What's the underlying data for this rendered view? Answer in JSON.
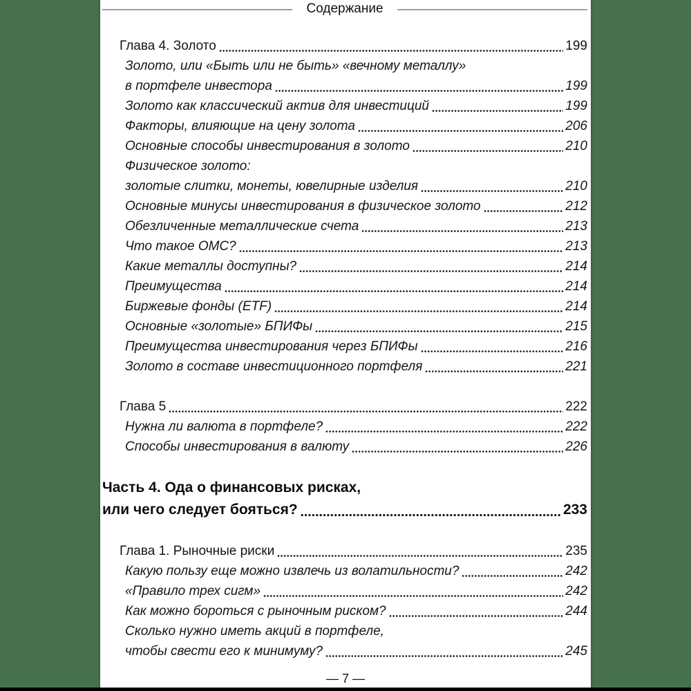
{
  "colors": {
    "sidebar-green": "#47714e",
    "page-bg": "#ffffff",
    "text-color": "#151515",
    "header-line": "#9e9e9e",
    "bottom-bar": "#000000"
  },
  "header": {
    "title": "Содержание"
  },
  "footer": {
    "page_label": "— 7 —"
  },
  "toc": {
    "entries": [
      {
        "style": "chapter",
        "text": "Глава 4. Золото ",
        "page": "199"
      },
      {
        "style": "sub",
        "text": "Золото, или «Быть или не быть» «вечному металлу»",
        "page": null
      },
      {
        "style": "sub",
        "text": "в портфеле инвестора",
        "page": "199"
      },
      {
        "style": "sub",
        "text": "Золото как классический актив для инвестиций",
        "page": "199"
      },
      {
        "style": "sub",
        "text": "Факторы, влияющие на цену золота",
        "page": "206"
      },
      {
        "style": "sub",
        "text": "Основные способы инвестирования в золото",
        "page": "210"
      },
      {
        "style": "sub",
        "text": "Физическое золото:",
        "page": null
      },
      {
        "style": "sub",
        "text": "золотые слитки, монеты, ювелирные изделия",
        "page": "210"
      },
      {
        "style": "sub",
        "text": "Основные минусы инвестирования в физическое золото",
        "page": "212"
      },
      {
        "style": "sub",
        "text": "Обезличенные металлические счета",
        "page": "213"
      },
      {
        "style": "sub",
        "text": "Что такое ОМС?",
        "page": "213"
      },
      {
        "style": "sub",
        "text": "Какие металлы доступны?",
        "page": "214"
      },
      {
        "style": "sub",
        "text": "Преимущества",
        "page": "214"
      },
      {
        "style": "sub",
        "text": "Биржевые фонды (ETF)",
        "page": "214"
      },
      {
        "style": "sub",
        "text": "Основные «золотые» БПИФы",
        "page": "215"
      },
      {
        "style": "sub",
        "text": "Преимущества инвестирования через БПИФы",
        "page": "216"
      },
      {
        "style": "sub",
        "text": "Золото в составе инвестиционного портфеля",
        "page": "221"
      },
      {
        "style": "chapter",
        "text": "Глава 5",
        "page": "222",
        "gap_before": true
      },
      {
        "style": "sub",
        "text": "Нужна ли валюта в портфеле?",
        "page": "222"
      },
      {
        "style": "sub",
        "text": "Способы инвестирования в валюту",
        "page": "226"
      },
      {
        "style": "part",
        "text": "Часть 4. Ода о финансовых рисках,",
        "page": null,
        "gap_before": true
      },
      {
        "style": "part",
        "text": "или чего следует бояться? ",
        "page": "233"
      },
      {
        "style": "chapter",
        "text": "Глава 1. Рыночные риски ",
        "page": "235",
        "gap_before": true
      },
      {
        "style": "sub",
        "text": "Какую пользу еще можно извлечь из волатильности?",
        "page": "242"
      },
      {
        "style": "sub",
        "text": "«Правило трех сигм»",
        "page": "242"
      },
      {
        "style": "sub",
        "text": "Как можно бороться с рыночным риском?",
        "page": "244"
      },
      {
        "style": "sub",
        "text": "Сколько нужно иметь акций в портфеле,",
        "page": null
      },
      {
        "style": "sub",
        "text": "чтобы свести его к минимуму? ",
        "page": "245"
      }
    ]
  }
}
